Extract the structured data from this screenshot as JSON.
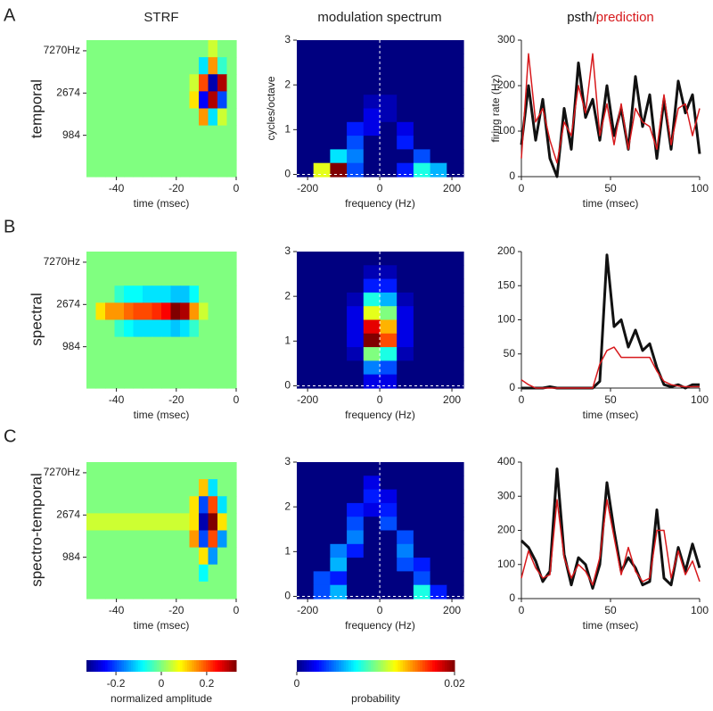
{
  "rows": [
    {
      "letter": "A",
      "label": "temporal"
    },
    {
      "letter": "B",
      "label": "spectral"
    },
    {
      "letter": "C",
      "label": "spectro-temporal"
    }
  ],
  "chart_data": [
    {
      "type": "heatmap",
      "title": "STRF",
      "colormap": "jet",
      "clim": [
        -0.33,
        0.33
      ],
      "xlim": [
        -50,
        0
      ],
      "ylim": [
        370,
        9350
      ],
      "ylog": true,
      "xticks": [
        -40,
        -20,
        0
      ],
      "yticks": [
        {
          "value": 7270,
          "label": "7270Hz"
        },
        2674,
        984
      ],
      "xlabel": "time (msec)",
      "values": [
        [
          0,
          0,
          0,
          0,
          0,
          0,
          0,
          0,
          0,
          0,
          0,
          0,
          0,
          0.05,
          0,
          0
        ],
        [
          0,
          0,
          0,
          0,
          0,
          0,
          0,
          0,
          0,
          0,
          0,
          0,
          -0.1,
          0.15,
          -0.05,
          0
        ],
        [
          0,
          0,
          0,
          0,
          0,
          0,
          0,
          0,
          0,
          0,
          0,
          0.05,
          0.2,
          -0.3,
          0.3,
          0
        ],
        [
          0,
          0,
          0,
          0,
          0,
          0,
          0,
          0,
          0,
          0,
          0,
          0.1,
          -0.25,
          0.3,
          -0.2,
          0
        ],
        [
          0,
          0,
          0,
          0,
          0,
          0,
          0,
          0,
          0,
          0,
          0,
          0,
          0.15,
          -0.1,
          0.05,
          0
        ],
        [
          0,
          0,
          0,
          0,
          0,
          0,
          0,
          0,
          0,
          0,
          0,
          0,
          0,
          0,
          0,
          0
        ],
        [
          0,
          0,
          0,
          0,
          0,
          0,
          0,
          0,
          0,
          0,
          0,
          0,
          0,
          0,
          0,
          0
        ],
        [
          0,
          0,
          0,
          0,
          0,
          0,
          0,
          0,
          0,
          0,
          0,
          0,
          0,
          0,
          0,
          0
        ]
      ]
    },
    {
      "type": "heatmap",
      "title": "modulation spectrum",
      "colormap": "jet",
      "clim": [
        0,
        0.02
      ],
      "xlim": [
        -230,
        232
      ],
      "ylim": [
        -0.05,
        3
      ],
      "zero_lines": true,
      "xticks": [
        -200,
        0,
        200
      ],
      "yticks": [
        0,
        1,
        2,
        3
      ],
      "xlabel": "frequency (Hz)",
      "ylabel": "cycles/octave",
      "values": [
        [
          0,
          0,
          0,
          0,
          0,
          0,
          0,
          0,
          0,
          0
        ],
        [
          0,
          0,
          0,
          0,
          0,
          0,
          0,
          0,
          0,
          0
        ],
        [
          0,
          0,
          0,
          0,
          0,
          0,
          0,
          0,
          0,
          0
        ],
        [
          0,
          0,
          0,
          0,
          0,
          0,
          0,
          0,
          0,
          0
        ],
        [
          0,
          0,
          0,
          0,
          0.001,
          0.001,
          0,
          0,
          0,
          0
        ],
        [
          0,
          0,
          0,
          0,
          0.002,
          0.001,
          0,
          0,
          0,
          0
        ],
        [
          0,
          0,
          0,
          0.003,
          0.002,
          0,
          0.002,
          0,
          0,
          0
        ],
        [
          0,
          0,
          0,
          0.004,
          0,
          0,
          0.003,
          0,
          0,
          0
        ],
        [
          0,
          0,
          0.007,
          0.005,
          0,
          0,
          0,
          0.004,
          0,
          0
        ],
        [
          0,
          0.012,
          0.02,
          0.004,
          0,
          0,
          0.003,
          0.008,
          0.006,
          0
        ]
      ]
    },
    {
      "type": "line",
      "title_separator": "/",
      "xlim": [
        0,
        100
      ],
      "ylim": [
        0,
        300
      ],
      "xticks": [
        0,
        50,
        100
      ],
      "yticks": [
        0,
        100,
        200,
        300
      ],
      "xlabel": "time (msec)",
      "ylabel": "firing rate (Hz)",
      "x": [
        0,
        4,
        8,
        12,
        16,
        20,
        24,
        28,
        32,
        36,
        40,
        44,
        48,
        52,
        56,
        60,
        64,
        68,
        72,
        76,
        80,
        84,
        88,
        92,
        96,
        100
      ],
      "series": [
        {
          "name": "psth",
          "color": "#111111",
          "values": [
            70,
            200,
            80,
            170,
            40,
            0,
            150,
            60,
            250,
            130,
            170,
            80,
            200,
            90,
            150,
            60,
            220,
            110,
            180,
            40,
            170,
            60,
            210,
            140,
            180,
            50
          ]
        },
        {
          "name": "prediction",
          "color": "#d7191c",
          "values": [
            40,
            270,
            120,
            150,
            80,
            30,
            120,
            90,
            200,
            140,
            270,
            90,
            160,
            70,
            160,
            60,
            150,
            120,
            110,
            60,
            180,
            70,
            150,
            160,
            90,
            150
          ]
        }
      ]
    },
    {
      "type": "heatmap",
      "colormap": "jet",
      "clim": [
        -0.33,
        0.33
      ],
      "xlim": [
        -50,
        0
      ],
      "ylim": [
        370,
        9350
      ],
      "ylog": true,
      "xticks": [
        -40,
        -20,
        0
      ],
      "yticks": [
        {
          "value": 7270,
          "label": "7270Hz"
        },
        2674,
        984
      ],
      "xlabel": "time (msec)",
      "values": [
        [
          0,
          0,
          0,
          0,
          0,
          0,
          0,
          0,
          0,
          0,
          0,
          0,
          0,
          0,
          0,
          0
        ],
        [
          0,
          0,
          0,
          0,
          0,
          0,
          0,
          0,
          0,
          0,
          0,
          0,
          0,
          0,
          0,
          0
        ],
        [
          0,
          0,
          0,
          -0.05,
          -0.08,
          -0.08,
          -0.1,
          -0.1,
          -0.1,
          -0.12,
          -0.12,
          -0.08,
          0,
          0,
          0,
          0
        ],
        [
          0,
          0.1,
          0.15,
          0.15,
          0.18,
          0.2,
          0.2,
          0.22,
          0.25,
          0.33,
          0.3,
          0.15,
          0.05,
          0,
          0,
          0
        ],
        [
          0,
          0,
          0,
          -0.05,
          -0.08,
          -0.1,
          -0.1,
          -0.1,
          -0.1,
          -0.12,
          -0.1,
          -0.05,
          0,
          0,
          0,
          0
        ],
        [
          0,
          0,
          0,
          0,
          0,
          0,
          0,
          0,
          0,
          0,
          0,
          0,
          0,
          0,
          0,
          0
        ],
        [
          0,
          0,
          0,
          0,
          0,
          0,
          0,
          0,
          0,
          0,
          0,
          0,
          0,
          0,
          0,
          0
        ],
        [
          0,
          0,
          0,
          0,
          0,
          0,
          0,
          0,
          0,
          0,
          0,
          0,
          0,
          0,
          0,
          0
        ]
      ]
    },
    {
      "type": "heatmap",
      "colormap": "jet",
      "clim": [
        0,
        0.02
      ],
      "xlim": [
        -230,
        232
      ],
      "ylim": [
        -0.05,
        3
      ],
      "zero_lines": true,
      "xticks": [
        -200,
        0,
        200
      ],
      "yticks": [
        0,
        1,
        2,
        3
      ],
      "xlabel": "frequency (Hz)",
      "values": [
        [
          0,
          0,
          0,
          0,
          0,
          0,
          0,
          0,
          0,
          0
        ],
        [
          0,
          0,
          0,
          0,
          0.001,
          0.001,
          0,
          0,
          0,
          0
        ],
        [
          0,
          0,
          0,
          0,
          0.003,
          0.003,
          0,
          0,
          0,
          0
        ],
        [
          0,
          0,
          0,
          0.001,
          0.008,
          0.006,
          0.001,
          0,
          0,
          0
        ],
        [
          0,
          0,
          0,
          0.002,
          0.012,
          0.01,
          0.002,
          0,
          0,
          0
        ],
        [
          0,
          0,
          0,
          0.002,
          0.018,
          0.014,
          0.002,
          0,
          0,
          0
        ],
        [
          0,
          0,
          0,
          0.002,
          0.02,
          0.016,
          0.002,
          0,
          0,
          0
        ],
        [
          0,
          0,
          0,
          0.001,
          0.01,
          0.008,
          0.001,
          0,
          0,
          0
        ],
        [
          0,
          0,
          0,
          0,
          0.005,
          0.004,
          0,
          0,
          0,
          0
        ],
        [
          0,
          0,
          0,
          0,
          0.002,
          0.002,
          0,
          0,
          0,
          0
        ]
      ]
    },
    {
      "type": "line",
      "xlim": [
        0,
        100
      ],
      "ylim": [
        0,
        200
      ],
      "xticks": [
        0,
        50,
        100
      ],
      "yticks": [
        0,
        50,
        100,
        150,
        200
      ],
      "xlabel": "time (msec)",
      "x": [
        0,
        4,
        8,
        12,
        16,
        20,
        24,
        28,
        32,
        36,
        40,
        44,
        48,
        52,
        56,
        60,
        64,
        68,
        72,
        76,
        80,
        84,
        88,
        92,
        96,
        100
      ],
      "series": [
        {
          "color": "#111111",
          "values": [
            0,
            0,
            0,
            0,
            2,
            0,
            0,
            0,
            0,
            0,
            0,
            10,
            195,
            90,
            100,
            60,
            85,
            55,
            65,
            30,
            5,
            2,
            5,
            0,
            5,
            5
          ]
        },
        {
          "color": "#d7191c",
          "values": [
            12,
            5,
            0,
            0,
            0,
            0,
            0,
            0,
            0,
            0,
            0,
            35,
            55,
            60,
            45,
            45,
            45,
            45,
            45,
            25,
            10,
            5,
            3,
            2,
            2,
            2
          ]
        }
      ]
    },
    {
      "type": "heatmap",
      "colormap": "jet",
      "clim": [
        -0.33,
        0.33
      ],
      "xlim": [
        -50,
        0
      ],
      "ylim": [
        370,
        9350
      ],
      "ylog": true,
      "xticks": [
        -40,
        -20,
        0
      ],
      "yticks": [
        {
          "value": 7270,
          "label": "7270Hz"
        },
        2674,
        984
      ],
      "xlabel": "time (msec)",
      "values": [
        [
          0,
          0,
          0,
          0,
          0,
          0,
          0,
          0,
          0,
          0,
          0,
          0,
          0,
          0,
          0,
          0
        ],
        [
          0,
          0,
          0,
          0,
          0,
          0,
          0,
          0,
          0,
          0,
          0,
          0,
          0.12,
          -0.1,
          0,
          0
        ],
        [
          0,
          0,
          0,
          0,
          0,
          0,
          0,
          0,
          0,
          0,
          0,
          0.1,
          -0.2,
          0.2,
          -0.1,
          0
        ],
        [
          0.05,
          0.05,
          0.05,
          0.05,
          0.05,
          0.05,
          0.05,
          0.05,
          0.05,
          0.05,
          0.05,
          0.1,
          -0.3,
          0.33,
          0.1,
          0
        ],
        [
          0,
          0,
          0,
          0,
          0,
          0,
          0,
          0,
          0,
          0,
          0,
          0.15,
          -0.2,
          0.2,
          -0.15,
          0
        ],
        [
          0,
          0,
          0,
          0,
          0,
          0,
          0,
          0,
          0,
          0,
          0,
          0,
          0.1,
          -0.15,
          0,
          0
        ],
        [
          0,
          0,
          0,
          0,
          0,
          0,
          0,
          0,
          0,
          0,
          0,
          0,
          -0.08,
          0,
          0,
          0
        ],
        [
          0,
          0,
          0,
          0,
          0,
          0,
          0,
          0,
          0,
          0,
          0,
          0,
          0,
          0,
          0,
          0
        ]
      ]
    },
    {
      "type": "heatmap",
      "colormap": "jet",
      "clim": [
        0,
        0.02
      ],
      "xlim": [
        -230,
        232
      ],
      "ylim": [
        -0.05,
        3
      ],
      "zero_lines": true,
      "xticks": [
        -200,
        0,
        200
      ],
      "yticks": [
        0,
        1,
        2,
        3
      ],
      "xlabel": "frequency (Hz)",
      "values": [
        [
          0,
          0,
          0,
          0,
          0,
          0,
          0,
          0,
          0,
          0
        ],
        [
          0,
          0,
          0,
          0,
          0.002,
          0,
          0,
          0,
          0,
          0
        ],
        [
          0,
          0,
          0,
          0,
          0.003,
          0.002,
          0,
          0,
          0,
          0
        ],
        [
          0,
          0,
          0,
          0.003,
          0.002,
          0.003,
          0,
          0,
          0,
          0
        ],
        [
          0,
          0,
          0,
          0.004,
          0,
          0.004,
          0,
          0,
          0,
          0
        ],
        [
          0,
          0,
          0,
          0.005,
          0,
          0,
          0.004,
          0,
          0,
          0
        ],
        [
          0,
          0,
          0.005,
          0.003,
          0,
          0,
          0.005,
          0,
          0,
          0
        ],
        [
          0,
          0,
          0.006,
          0,
          0,
          0,
          0.004,
          0.003,
          0,
          0
        ],
        [
          0,
          0.004,
          0.003,
          0,
          0,
          0,
          0,
          0.004,
          0,
          0
        ],
        [
          0,
          0.004,
          0.006,
          0,
          0,
          0,
          0,
          0.008,
          0.003,
          0
        ]
      ]
    },
    {
      "type": "line",
      "xlim": [
        0,
        100
      ],
      "ylim": [
        0,
        400
      ],
      "xticks": [
        0,
        50,
        100
      ],
      "yticks": [
        0,
        100,
        200,
        300,
        400
      ],
      "xlabel": "time (msec)",
      "x": [
        0,
        4,
        8,
        12,
        16,
        20,
        24,
        28,
        32,
        36,
        40,
        44,
        48,
        52,
        56,
        60,
        64,
        68,
        72,
        76,
        80,
        84,
        88,
        92,
        96,
        100
      ],
      "series": [
        {
          "color": "#111111",
          "values": [
            170,
            150,
            110,
            50,
            80,
            380,
            130,
            40,
            120,
            100,
            30,
            100,
            340,
            200,
            80,
            120,
            90,
            40,
            50,
            260,
            60,
            40,
            150,
            80,
            160,
            90
          ]
        },
        {
          "color": "#d7191c",
          "values": [
            60,
            140,
            90,
            60,
            70,
            290,
            120,
            60,
            100,
            80,
            40,
            120,
            290,
            180,
            70,
            150,
            80,
            50,
            60,
            200,
            200,
            60,
            140,
            70,
            110,
            50
          ]
        }
      ]
    },
    {
      "type": "colorbar",
      "colormap": "jet",
      "clim": [
        -0.33,
        0.33
      ],
      "ticks": [
        -0.2,
        0,
        0.2
      ],
      "label": "normalized amplitude"
    },
    {
      "type": "colorbar",
      "colormap": "jet",
      "clim": [
        0,
        0.02
      ],
      "ticks": [
        0,
        0.02
      ],
      "label": "probability"
    }
  ]
}
